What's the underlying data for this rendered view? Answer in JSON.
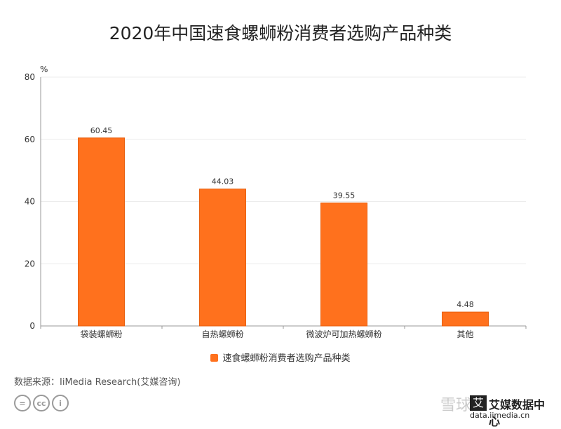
{
  "title": "2020年中国速食螺蛳粉消费者选购产品种类",
  "source": "数据来源：IiMedia Research(艾媒咨询)",
  "colors": {
    "bar": "#ff711d",
    "bar_border": "#e8600f",
    "grid": "#ececec",
    "axis": "#999999"
  },
  "license_icons": [
    "equals-icon",
    "cc-icon",
    "person-icon"
  ],
  "watermark": {
    "text": "雪球：",
    "logo_mark": "艾",
    "logo_name": "艾媒数据中心",
    "logo_url": "data.iimedia.cn"
  },
  "chart_data": {
    "type": "bar",
    "title": "2020年中国速食螺蛳粉消费者选购产品种类",
    "ylabel": "%",
    "xlabel": "",
    "ylim": [
      0,
      80
    ],
    "yticks": [
      0,
      20,
      40,
      60,
      80
    ],
    "grid": true,
    "legend_position": "bottom",
    "categories": [
      "袋装螺蛳粉",
      "自热螺蛳粉",
      "微波炉可加热螺蛳粉",
      "其他"
    ],
    "series": [
      {
        "name": "速食螺蛳粉消费者选购产品种类",
        "values": [
          60.45,
          44.03,
          39.55,
          4.48
        ]
      }
    ],
    "data_labels": [
      "60.45",
      "44.03",
      "39.55",
      "4.48"
    ]
  }
}
